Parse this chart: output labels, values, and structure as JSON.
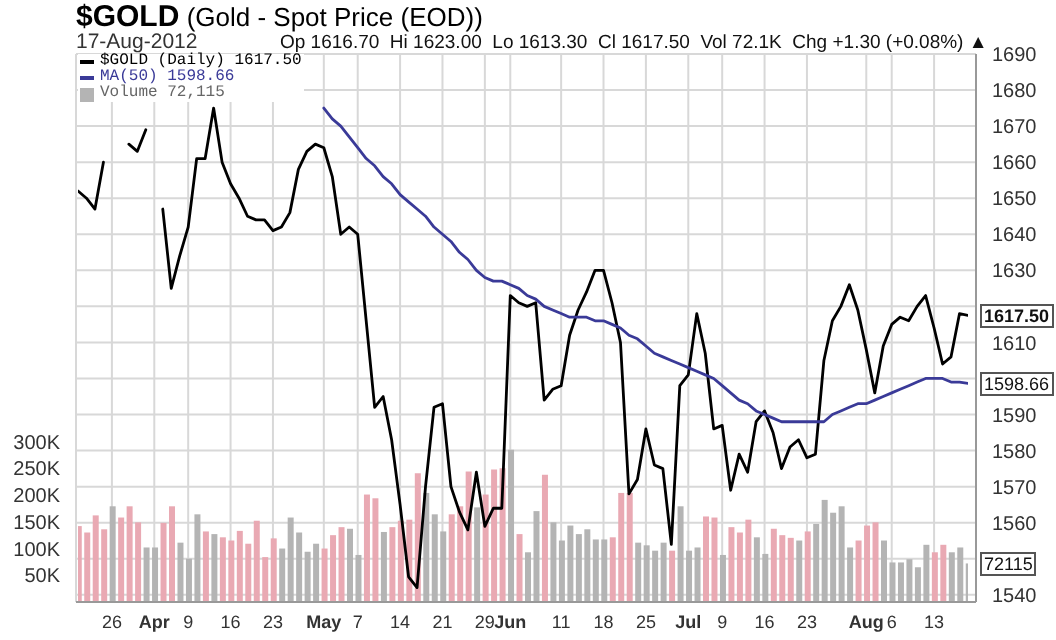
{
  "chart_data": {
    "type": "line",
    "title": "$GOLD (Gold - Spot Price (EOD))",
    "subtitle": "17-Aug-2012",
    "annotations": [
      "Op 1616.70  Hi 1623.00  Lo 1613.30  Cl 1617.50  Vol 72.1K  Chg +1.30 (+0.08%) ▲",
      "1617.50",
      "1598.66",
      "72115"
    ],
    "categories": [
      null,
      null,
      null,
      null,
      "26",
      null,
      null,
      null,
      null,
      "Apr",
      null,
      null,
      null,
      "9",
      null,
      null,
      null,
      null,
      "16",
      null,
      null,
      null,
      null,
      "23",
      null,
      null,
      null,
      null,
      null,
      "May",
      null,
      null,
      null,
      "7",
      null,
      null,
      null,
      null,
      "14",
      null,
      null,
      null,
      null,
      "21",
      null,
      null,
      null,
      null,
      "29",
      null,
      null,
      "Jun",
      null,
      null,
      null,
      null,
      null,
      "11",
      null,
      null,
      null,
      null,
      "18",
      null,
      null,
      null,
      null,
      "25",
      null,
      null,
      null,
      null,
      "Jul",
      null,
      null,
      null,
      "9",
      null,
      null,
      null,
      null,
      "16",
      null,
      null,
      null,
      null,
      "23",
      null,
      null,
      null,
      null,
      null,
      null,
      "Aug",
      null,
      null,
      "6",
      null,
      null,
      null,
      null,
      "13",
      null,
      null,
      null,
      null
    ],
    "series": [
      {
        "name": "$GOLD (Daily) 1617.50",
        "axis": "y2",
        "color": "#000000",
        "values": [
          1652,
          1650,
          1647,
          1660,
          null,
          null,
          1665,
          1663,
          1669,
          null,
          1647,
          1625,
          1634,
          1642,
          1661,
          1661,
          1675,
          1660,
          1654,
          1650,
          1645,
          1644,
          1644,
          1641,
          1642,
          1646,
          1658,
          1663,
          1665,
          1664,
          1656,
          1640,
          1642,
          1640,
          1616,
          1592,
          1595,
          1583,
          1565,
          1545,
          1542,
          1570,
          1592,
          1593,
          1570,
          1563,
          1558,
          1574,
          1559,
          1564,
          1564,
          1623,
          1621,
          1620,
          1621,
          1594,
          1597,
          1598,
          1612,
          1619,
          1624,
          1630,
          1630,
          1621,
          1610,
          1568,
          1572,
          1586,
          1576,
          1575,
          1554,
          1598,
          1601,
          1618,
          1607,
          1586,
          1587,
          1569,
          1579,
          1574,
          1588,
          1591,
          1585,
          1575,
          1581,
          1583,
          1578,
          1579,
          1605,
          1616,
          1620,
          1626,
          1619,
          1608,
          1596,
          1609,
          1615,
          1617,
          1616,
          1620,
          1623,
          1614,
          1604,
          1606,
          1618,
          1617.5
        ]
      },
      {
        "name": "MA(50) 1598.66",
        "axis": "y2",
        "color": "#3a3a98",
        "values": [
          null,
          null,
          null,
          null,
          null,
          null,
          null,
          null,
          null,
          null,
          null,
          null,
          null,
          null,
          null,
          null,
          null,
          null,
          null,
          null,
          null,
          null,
          null,
          null,
          null,
          null,
          null,
          null,
          null,
          1675,
          1672,
          1670,
          1667,
          1664,
          1661,
          1659,
          1656,
          1654,
          1651,
          1649,
          1647,
          1645,
          1642,
          1640,
          1638,
          1635,
          1633,
          1630,
          1628,
          1627,
          1627,
          1626,
          1625,
          1623,
          1622,
          1620,
          1619,
          1618,
          1617,
          1617,
          1617,
          1616,
          1616,
          1615,
          1614,
          1612,
          1611,
          1609,
          1607,
          1606,
          1605,
          1604,
          1603,
          1602,
          1601,
          1600,
          1598,
          1596,
          1594,
          1593,
          1591,
          1590,
          1589,
          1588,
          1588,
          1588,
          1588,
          1588,
          1588,
          1590,
          1591,
          1592,
          1593,
          1593,
          1594,
          1595,
          1596,
          1597,
          1598,
          1599,
          1600,
          1600,
          1600,
          1599,
          1599,
          1598.66
        ]
      },
      {
        "name": "Volume 72,115",
        "type": "bar",
        "axis": "y",
        "color": "#b4b4b4",
        "values": [
          142000,
          130000,
          162000,
          136000,
          179000,
          158000,
          179000,
          149000,
          102000,
          102000,
          148000,
          179000,
          111000,
          81000,
          164000,
          132000,
          127000,
          121000,
          115000,
          133000,
          109000,
          152000,
          84000,
          119000,
          100000,
          158000,
          130000,
          94000,
          109000,
          100000,
          125000,
          140000,
          137000,
          88000,
          201000,
          194000,
          131000,
          140000,
          152000,
          154000,
          241000,
          204000,
          164000,
          132000,
          164000,
          179000,
          244000,
          177000,
          201000,
          248000,
          250000,
          285000,
          127000,
          93000,
          170000,
          238000,
          149000,
          115000,
          143000,
          127000,
          136000,
          117000,
          117000,
          121000,
          204000,
          204000,
          111000,
          106000,
          96000,
          111000,
          96000,
          179000,
          96000,
          102000,
          160000,
          158000,
          88000,
          140000,
          130000,
          154000,
          121000,
          90000,
          137000,
          125000,
          120000,
          115000,
          132000,
          146000,
          191000,
          167000,
          179000,
          102000,
          115000,
          143000,
          149000,
          115000,
          74000,
          74000,
          80000,
          65000,
          107000,
          93000,
          107000,
          93000,
          102000,
          72115
        ],
        "colors": [
          "#e9a9b3",
          "#e9a9b3",
          "#e9a9b3",
          "#e9a9b3",
          "#b4b4b4",
          "#e9a9b3",
          "#e9a9b3",
          "#e9a9b3",
          "#b4b4b4",
          "#b4b4b4",
          "#e9a9b3",
          "#e9a9b3",
          "#b4b4b4",
          "#b4b4b4",
          "#b4b4b4",
          "#e9a9b3",
          "#b4b4b4",
          "#e9a9b3",
          "#e9a9b3",
          "#e9a9b3",
          "#e9a9b3",
          "#e9a9b3",
          "#e9a9b3",
          "#e9a9b3",
          "#b4b4b4",
          "#b4b4b4",
          "#b4b4b4",
          "#b4b4b4",
          "#b4b4b4",
          "#e9a9b3",
          "#e9a9b3",
          "#e9a9b3",
          "#b4b4b4",
          "#b4b4b4",
          "#e9a9b3",
          "#e9a9b3",
          "#b4b4b4",
          "#e9a9b3",
          "#e9a9b3",
          "#e9a9b3",
          "#e9a9b3",
          "#b4b4b4",
          "#b4b4b4",
          "#b4b4b4",
          "#e9a9b3",
          "#e9a9b3",
          "#e9a9b3",
          "#b4b4b4",
          "#e9a9b3",
          "#e9a9b3",
          "#e9a9b3",
          "#b4b4b4",
          "#e9a9b3",
          "#b4b4b4",
          "#b4b4b4",
          "#e9a9b3",
          "#b4b4b4",
          "#b4b4b4",
          "#b4b4b4",
          "#b4b4b4",
          "#b4b4b4",
          "#b4b4b4",
          "#b4b4b4",
          "#e9a9b3",
          "#e9a9b3",
          "#e9a9b3",
          "#b4b4b4",
          "#b4b4b4",
          "#b4b4b4",
          "#b4b4b4",
          "#e9a9b3",
          "#b4b4b4",
          "#b4b4b4",
          "#b4b4b4",
          "#e9a9b3",
          "#e9a9b3",
          "#b4b4b4",
          "#e9a9b3",
          "#e9a9b3",
          "#e9a9b3",
          "#b4b4b4",
          "#b4b4b4",
          "#e9a9b3",
          "#e9a9b3",
          "#e9a9b3",
          "#b4b4b4",
          "#e9a9b3",
          "#b4b4b4",
          "#b4b4b4",
          "#b4b4b4",
          "#b4b4b4",
          "#b4b4b4",
          "#e9a9b3",
          "#e9a9b3",
          "#e9a9b3",
          "#b4b4b4",
          "#b4b4b4",
          "#b4b4b4",
          "#b4b4b4",
          "#b4b4b4",
          "#b4b4b4",
          "#e9a9b3",
          "#e9a9b3",
          "#b4b4b4",
          "#b4b4b4",
          "#b4b4b4"
        ]
      }
    ],
    "ylim": [
      0,
      1025000
    ],
    "yticks": [
      {
        "value": 50000,
        "label": "50K"
      },
      {
        "value": 100000,
        "label": "100K"
      },
      {
        "value": 150000,
        "label": "150K"
      },
      {
        "value": 200000,
        "label": "200K"
      },
      {
        "value": 250000,
        "label": "250K"
      },
      {
        "value": 300000,
        "label": "300K"
      }
    ],
    "y2lim": [
      1538,
      1690
    ],
    "y2ticks": [
      1540,
      {
        "value": 1550,
        "label": null
      },
      1560,
      1570,
      1580,
      1590,
      {
        "value": 1600,
        "label": null
      },
      1610,
      {
        "value": 1620,
        "label": null
      },
      1630,
      1640,
      1650,
      1660,
      1670,
      1680,
      1690
    ],
    "grid": true,
    "legend": "top left",
    "marker": "none",
    "line_style": "solid"
  }
}
